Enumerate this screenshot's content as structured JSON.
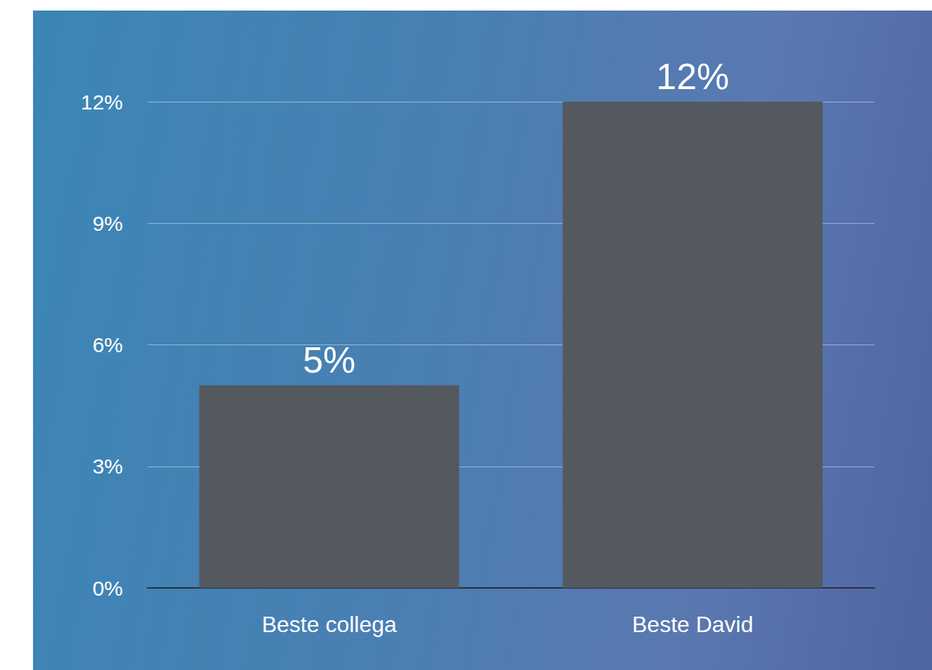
{
  "chart_data": {
    "type": "bar",
    "categories": [
      "Beste collega",
      "Beste David"
    ],
    "values": [
      5,
      12
    ],
    "value_labels": [
      "5%",
      "12%"
    ],
    "color": "#54585f",
    "ylim": [
      0,
      12
    ],
    "yticks": [
      {
        "value": 0,
        "label": "0%"
      },
      {
        "value": 3,
        "label": "3%"
      },
      {
        "value": 6,
        "label": "6%"
      },
      {
        "value": 9,
        "label": "9%"
      },
      {
        "value": 12,
        "label": "12%"
      }
    ],
    "grid": true,
    "data_labels": true
  }
}
